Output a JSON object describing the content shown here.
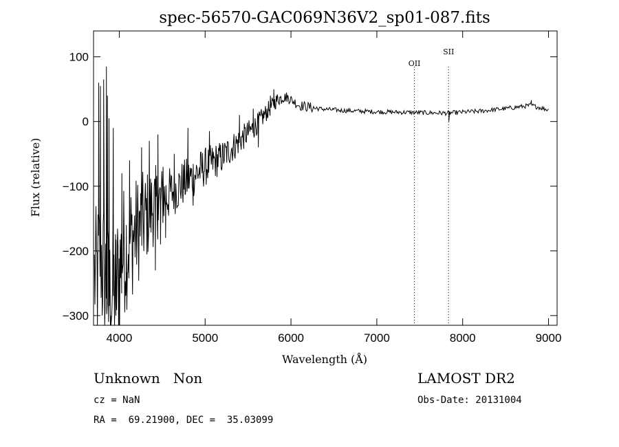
{
  "chart_data": {
    "type": "line",
    "title": "spec-56570-GAC069N36V2_sp01-087.fits",
    "xlabel": "Wavelength (Å)",
    "ylabel": "Flux (relative)",
    "xlim": [
      3700,
      9100
    ],
    "ylim": [
      -315,
      140
    ],
    "xticks": [
      4000,
      5000,
      6000,
      7000,
      8000,
      9000
    ],
    "yticks": [
      -300,
      -200,
      -100,
      0,
      100
    ],
    "ytick_labels": [
      "−300",
      "−200",
      "−100",
      "0",
      "100"
    ],
    "grid": false,
    "series": [
      {
        "anchors": [
          [
            3740,
            -240
          ],
          [
            3780,
            -200
          ],
          [
            3830,
            -230
          ],
          [
            3880,
            -270
          ],
          [
            3950,
            -260
          ],
          [
            4050,
            -200
          ],
          [
            4200,
            -170
          ],
          [
            4400,
            -130
          ],
          [
            4600,
            -110
          ],
          [
            4800,
            -90
          ],
          [
            5000,
            -70
          ],
          [
            5200,
            -55
          ],
          [
            5400,
            -30
          ],
          [
            5600,
            -5
          ],
          [
            5750,
            20
          ],
          [
            5850,
            35
          ],
          [
            5950,
            38
          ],
          [
            6100,
            25
          ],
          [
            6300,
            20
          ],
          [
            6600,
            17
          ],
          [
            7000,
            15
          ],
          [
            7400,
            14
          ],
          [
            7800,
            13
          ],
          [
            8200,
            16
          ],
          [
            8500,
            20
          ],
          [
            8800,
            25
          ],
          [
            9000,
            18
          ]
        ],
        "spikes": [
          [
            3745,
            -320
          ],
          [
            3760,
            60
          ],
          [
            3780,
            55
          ],
          [
            3800,
            -300
          ],
          [
            3818,
            65
          ],
          [
            3835,
            -290
          ],
          [
            3850,
            85
          ],
          [
            3862,
            40
          ],
          [
            3875,
            -310
          ],
          [
            3880,
            5
          ],
          [
            3900,
            -300
          ],
          [
            3930,
            -10
          ],
          [
            3960,
            -300
          ],
          [
            4000,
            -300
          ],
          [
            4030,
            -80
          ],
          [
            4080,
            -250
          ],
          [
            4120,
            -60
          ],
          [
            4150,
            -220
          ],
          [
            4260,
            -40
          ],
          [
            4350,
            -30
          ],
          [
            4420,
            -230
          ],
          [
            4450,
            -20
          ],
          [
            4480,
            -190
          ],
          [
            4510,
            -70
          ],
          [
            4540,
            -180
          ],
          [
            4640,
            -50
          ],
          [
            4800,
            -10
          ],
          [
            4860,
            -130
          ],
          [
            5050,
            -15
          ],
          [
            5400,
            10
          ],
          [
            5500,
            -20
          ],
          [
            5560,
            20
          ],
          [
            5620,
            -40
          ],
          [
            5760,
            40
          ],
          [
            5800,
            50
          ],
          [
            7840,
            0
          ],
          [
            8800,
            33
          ]
        ]
      }
    ],
    "annotations": [
      {
        "text": "OII",
        "x": 7438
      },
      {
        "text": "SII",
        "x": 7836
      }
    ]
  },
  "info": {
    "line1_left": "Unknown   Non",
    "line1_right": "LAMOST DR2",
    "line2_left": "cz = NaN",
    "line2_right": "Obs-Date: 20131004",
    "line3_left": "RA =  69.21900, DEC =  35.03099"
  }
}
